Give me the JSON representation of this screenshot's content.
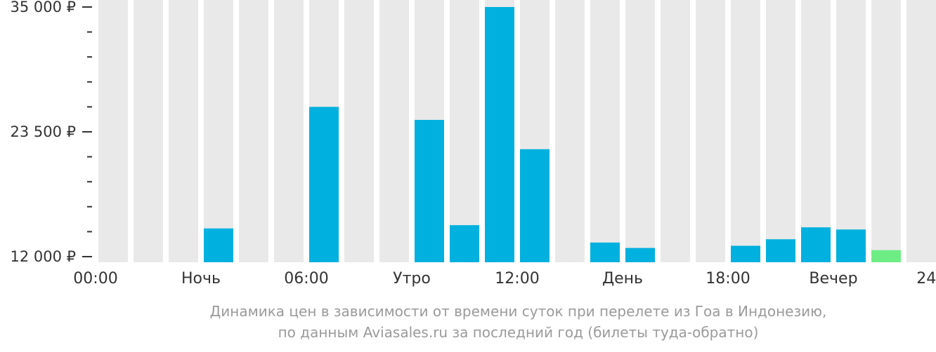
{
  "chart_data": {
    "type": "bar",
    "categories": [
      "00:00",
      "01:00",
      "02:00",
      "03:00",
      "04:00",
      "05:00",
      "06:00",
      "07:00",
      "08:00",
      "09:00",
      "10:00",
      "11:00",
      "12:00",
      "13:00",
      "14:00",
      "15:00",
      "16:00",
      "17:00",
      "18:00",
      "19:00",
      "20:00",
      "21:00",
      "22:00",
      "23:00"
    ],
    "values": [
      null,
      null,
      null,
      14600,
      null,
      null,
      25800,
      null,
      null,
      24600,
      14900,
      35000,
      21900,
      null,
      13300,
      12800,
      null,
      null,
      13000,
      13600,
      14700,
      14500,
      12600,
      null
    ],
    "highlight_index": 22,
    "ylim": [
      12000,
      35000
    ],
    "yticks": [
      {
        "value": 35000,
        "label": "35 000 ₽"
      },
      {
        "value": 23500,
        "label": "23 500 ₽"
      },
      {
        "value": 12000,
        "label": "12 000 ₽"
      }
    ],
    "yminor_step": 2300,
    "xlabels": [
      {
        "pos": 0,
        "label": "00:00"
      },
      {
        "pos": 3,
        "label": "Ночь"
      },
      {
        "pos": 6,
        "label": "06:00"
      },
      {
        "pos": 9,
        "label": "Утро"
      },
      {
        "pos": 12,
        "label": "12:00"
      },
      {
        "pos": 15,
        "label": "День"
      },
      {
        "pos": 18,
        "label": "18:00"
      },
      {
        "pos": 21,
        "label": "Вечер"
      },
      {
        "pos": 24,
        "label": "24:00"
      }
    ],
    "colors": {
      "bar": "#00b0de",
      "highlight": "#6eed85",
      "background_column": "#e9e9e9",
      "axis": "#333333"
    }
  },
  "caption": {
    "line1": "Динамика цен в зависимости от времени суток при перелете из Гоа в Индонезию,",
    "line2": "по данным Aviasales.ru за последний год (билеты туда-обратно)"
  }
}
